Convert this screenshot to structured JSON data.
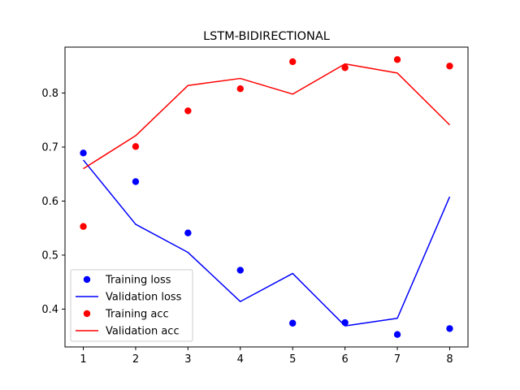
{
  "chart_data": {
    "type": "line",
    "title": "LSTM-BIDIRECTIONAL",
    "xlabel": "",
    "ylabel": "",
    "x": [
      1,
      2,
      3,
      4,
      5,
      6,
      7,
      8
    ],
    "xlim": [
      0.65,
      8.35
    ],
    "ylim": [
      0.33,
      0.885
    ],
    "xticks": [
      1,
      2,
      3,
      4,
      5,
      6,
      7,
      8
    ],
    "yticks": [
      0.4,
      0.5,
      0.6,
      0.7,
      0.8
    ],
    "grid": false,
    "legend_position": "lower-left",
    "series": [
      {
        "name": "Training loss",
        "style": "scatter",
        "color": "#0000ff",
        "values": [
          0.689,
          0.636,
          0.541,
          0.472,
          0.374,
          0.375,
          0.353,
          0.364
        ]
      },
      {
        "name": "Validation loss",
        "style": "line",
        "color": "#0000ff",
        "values": [
          0.676,
          0.557,
          0.505,
          0.414,
          0.466,
          0.369,
          0.383,
          0.608
        ]
      },
      {
        "name": "Training acc",
        "style": "scatter",
        "color": "#ff0000",
        "values": [
          0.553,
          0.701,
          0.767,
          0.808,
          0.858,
          0.847,
          0.862,
          0.85
        ]
      },
      {
        "name": "Validation acc",
        "style": "line",
        "color": "#ff0000",
        "values": [
          0.66,
          0.721,
          0.814,
          0.827,
          0.798,
          0.854,
          0.837,
          0.741
        ]
      }
    ]
  }
}
